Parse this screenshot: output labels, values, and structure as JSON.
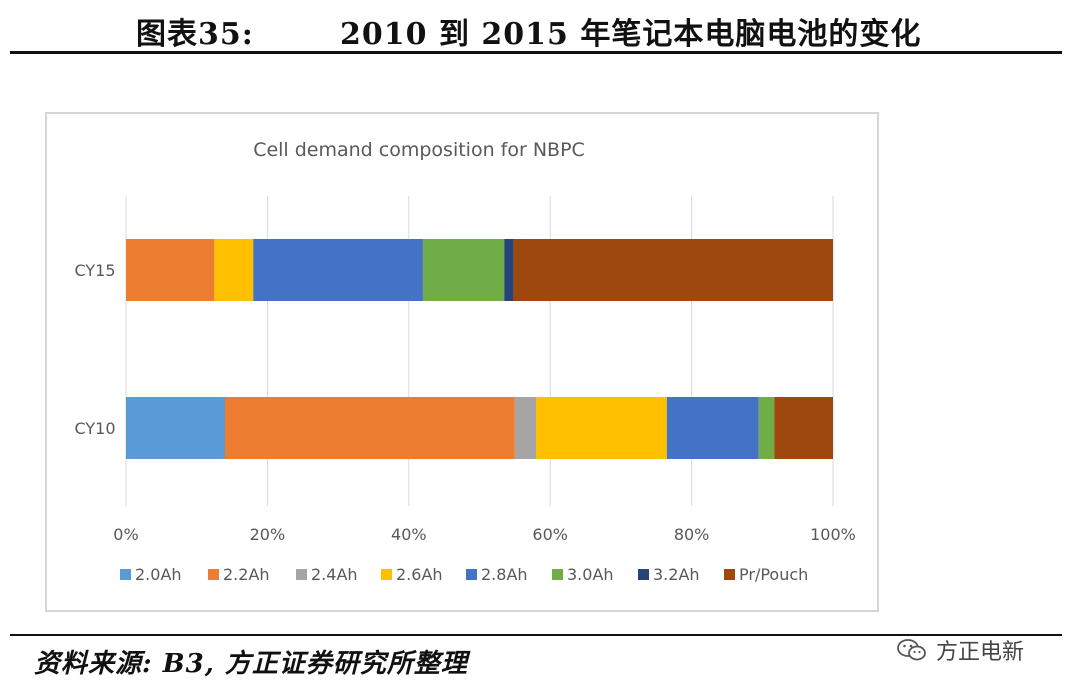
{
  "header": {
    "label": "图表35:",
    "title": "2010 到 2015 年笔记本电脑电池的变化"
  },
  "chart_data": {
    "type": "bar",
    "orientation": "horizontal",
    "stacked": "100%",
    "title": "Cell demand composition  for NBPC",
    "categories": [
      "CY15",
      "CY10"
    ],
    "x_ticks": [
      "0%",
      "20%",
      "40%",
      "60%",
      "80%",
      "100%"
    ],
    "xlim": [
      0,
      100
    ],
    "grid": "vertical",
    "legend_position": "bottom",
    "series": [
      {
        "name": "2.0Ah",
        "color": "#5b9bd5",
        "values": [
          0,
          14
        ]
      },
      {
        "name": "2.2Ah",
        "color": "#ed7d31",
        "values": [
          12.5,
          41
        ]
      },
      {
        "name": "2.4Ah",
        "color": "#a5a5a5",
        "values": [
          0,
          3
        ]
      },
      {
        "name": "2.6Ah",
        "color": "#ffc000",
        "values": [
          5.5,
          18.5
        ]
      },
      {
        "name": "2.8Ah",
        "color": "#4472c4",
        "values": [
          24,
          13
        ]
      },
      {
        "name": "3.0Ah",
        "color": "#70ad47",
        "values": [
          11.5,
          2.2
        ]
      },
      {
        "name": "3.2Ah",
        "color": "#264478",
        "values": [
          1.3,
          0
        ]
      },
      {
        "name": "Pr/Pouch",
        "color": "#9e480e",
        "values": [
          45.2,
          8.3
        ]
      }
    ]
  },
  "footer": {
    "source": "资料来源: B3, 方正证券研究所整理",
    "watermark": "方正电新"
  }
}
